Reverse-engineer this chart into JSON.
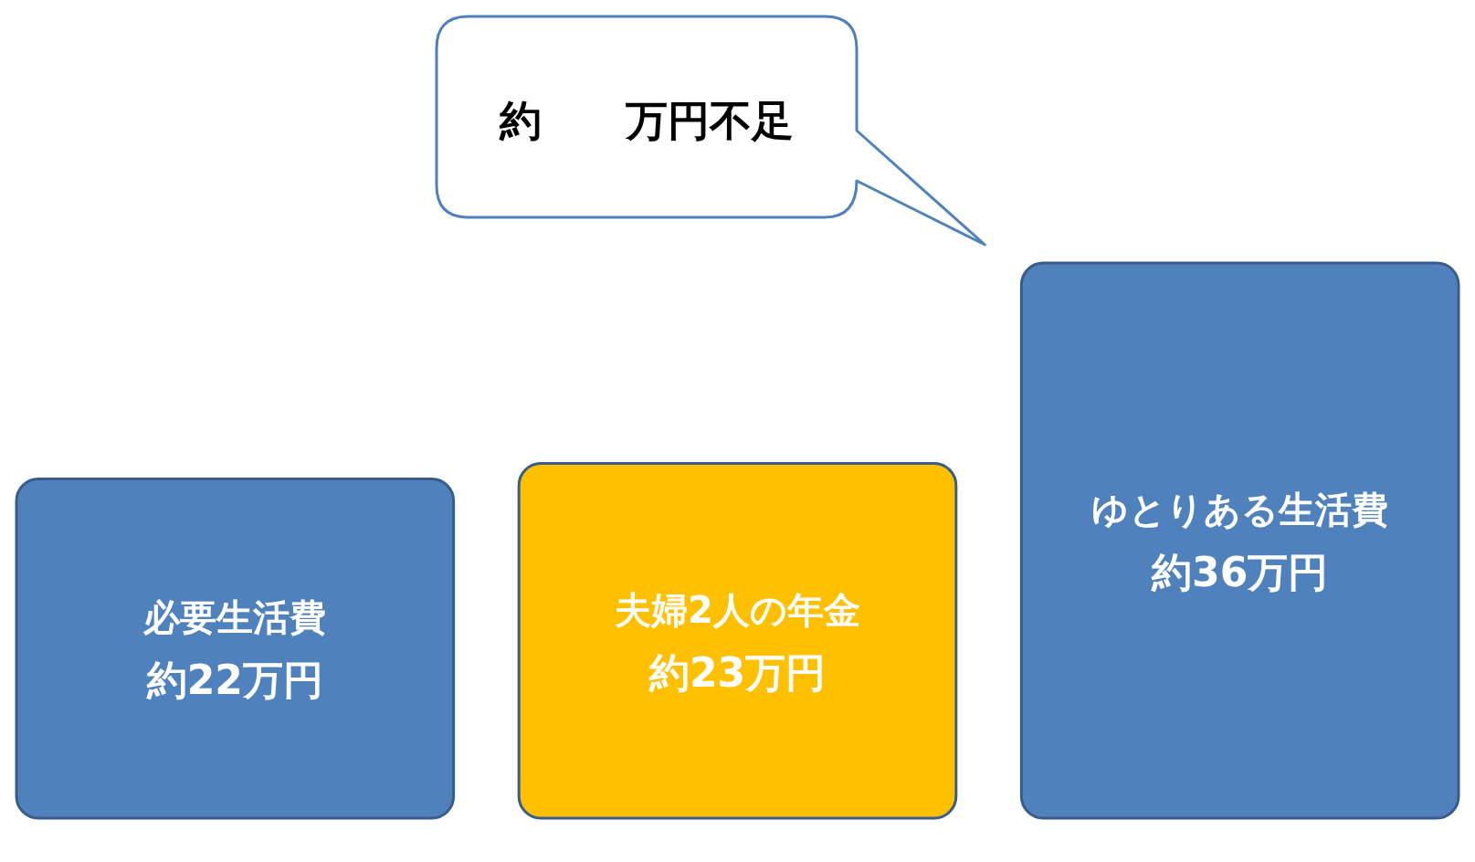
{
  "chart_data": {
    "type": "bar",
    "categories": [
      "必要生活費",
      "夫婦2人の年金",
      "ゆとりある生活費"
    ],
    "values": [
      22,
      23,
      36
    ],
    "colors": [
      "#4f81bd",
      "#ffc000",
      "#4f81bd"
    ],
    "value_labels": [
      "約22万円",
      "約23万円",
      "約36万円"
    ],
    "annotations": [
      "約　　万円不足"
    ]
  }
}
